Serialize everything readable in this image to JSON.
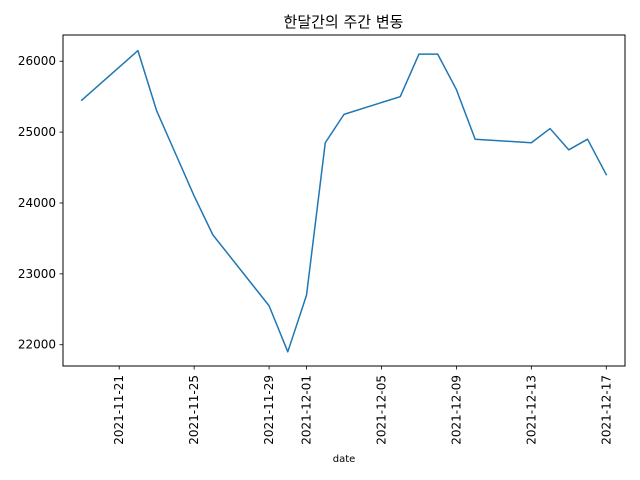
{
  "chart_data": {
    "type": "line",
    "title": "한달간의 주간 변동",
    "xlabel": "date",
    "ylabel": "",
    "grid": false,
    "legend": "none",
    "x_ticks": [
      "2021-11-21",
      "2021-11-25",
      "2021-11-29",
      "2021-12-01",
      "2021-12-05",
      "2021-12-09",
      "2021-12-13",
      "2021-12-17"
    ],
    "y_ticks": [
      22000,
      23000,
      24000,
      25000,
      26000
    ],
    "xlim": [
      "2021-11-18",
      "2021-12-18"
    ],
    "ylim": [
      21700,
      26370
    ],
    "series": [
      {
        "color": "#1f77b4",
        "x": [
          "2021-11-19",
          "2021-11-22",
          "2021-11-23",
          "2021-11-24",
          "2021-11-25",
          "2021-11-26",
          "2021-11-29",
          "2021-11-30",
          "2021-12-01",
          "2021-12-02",
          "2021-12-03",
          "2021-12-06",
          "2021-12-07",
          "2021-12-08",
          "2021-12-09",
          "2021-12-10",
          "2021-12-13",
          "2021-12-14",
          "2021-12-15",
          "2021-12-16",
          "2021-12-17"
        ],
        "values": [
          25450,
          26150,
          25300,
          24700,
          24100,
          23550,
          22550,
          21900,
          22700,
          24850,
          25250,
          25500,
          26100,
          26100,
          25600,
          24900,
          24850,
          25050,
          24750,
          24900,
          24400
        ]
      }
    ]
  }
}
